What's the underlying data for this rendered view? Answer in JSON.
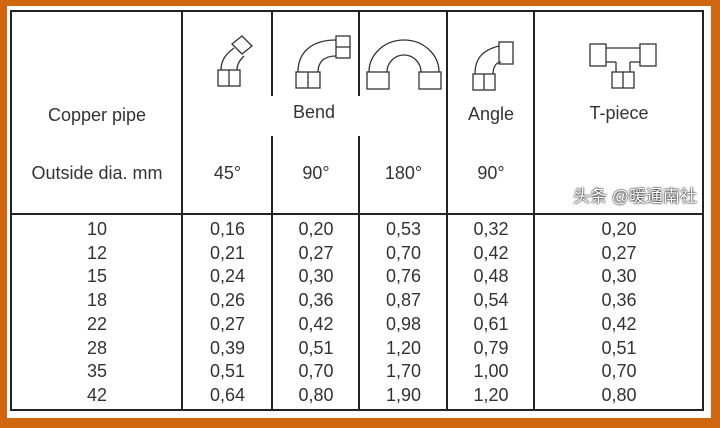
{
  "header": {
    "copper_pipe": "Copper pipe",
    "outside_dia": "Outside dia. mm",
    "bend": "Bend",
    "angle": "Angle",
    "tpiece": "T-piece",
    "angles": [
      "45°",
      "90°",
      "180°",
      "90°"
    ]
  },
  "icons": [
    "bend-45-icon",
    "bend-90-icon",
    "bend-180-icon",
    "angle-90-icon",
    "t-piece-icon"
  ],
  "columns": [
    [
      "10",
      "12",
      "15",
      "18",
      "22",
      "28",
      "35",
      "42"
    ],
    [
      "0,16",
      "0,21",
      "0,24",
      "0,26",
      "0,27",
      "0,39",
      "0,51",
      "0,64"
    ],
    [
      "0,20",
      "0,27",
      "0,30",
      "0,36",
      "0,42",
      "0,51",
      "0,70",
      "0,80"
    ],
    [
      "0,53",
      "0,70",
      "0,76",
      "0,87",
      "0,98",
      "1,20",
      "1,70",
      "1,90"
    ],
    [
      "0,32",
      "0,42",
      "0,48",
      "0,54",
      "0,61",
      "0,79",
      "1,00",
      "1,20"
    ],
    [
      "0,20",
      "0,27",
      "0,30",
      "0,36",
      "0,42",
      "0,51",
      "0,70",
      "0,80"
    ]
  ],
  "watermark": "头条 @暖通南社",
  "colors": {
    "frame": "#d0670f"
  }
}
